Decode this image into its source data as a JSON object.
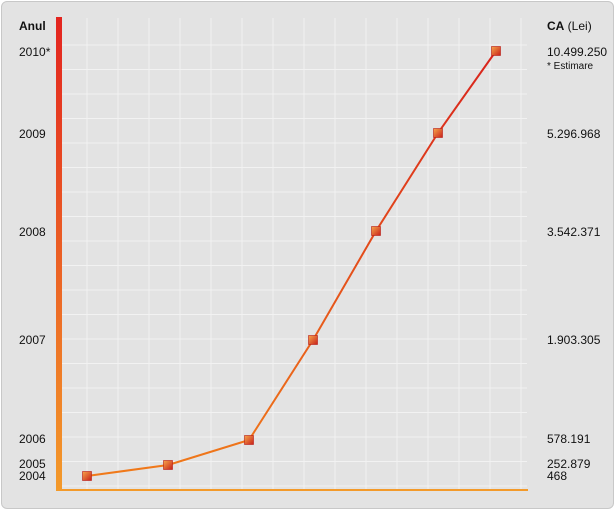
{
  "chart_data": {
    "type": "line",
    "y_axis_header": "Anul",
    "value_header_bold": "CA",
    "value_header_rest": " (Lei)",
    "note": "* Estimare",
    "points": [
      {
        "year": "2004",
        "value": 468,
        "value_label": "468"
      },
      {
        "year": "2005",
        "value": 252879,
        "value_label": "252.879"
      },
      {
        "year": "2006",
        "value": 578191,
        "value_label": "578.191"
      },
      {
        "year": "2007",
        "value": 1903305,
        "value_label": "1.903.305"
      },
      {
        "year": "2008",
        "value": 3542371,
        "value_label": "3.542.371"
      },
      {
        "year": "2009",
        "value": 5296968,
        "value_label": "5.296.968"
      },
      {
        "year": "2010*",
        "value": 10499250,
        "value_label": "10.499.250"
      }
    ],
    "grid": true,
    "colors": {
      "line_start": "#f07a1a",
      "line_end": "#d8231c",
      "marker": "#e8451c",
      "axis_top": "#e3241f",
      "axis_bottom": "#f39a2a",
      "grid": "#f2f2f2",
      "background": "#e3e3e3"
    }
  }
}
